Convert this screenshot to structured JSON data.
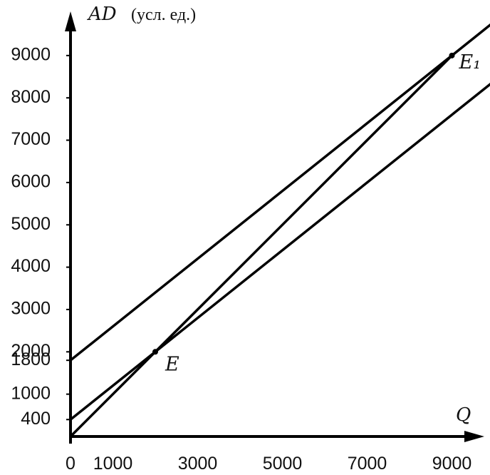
{
  "chart_data": {
    "type": "line",
    "y_axis": {
      "symbol": "AD",
      "unit": "(усл. ед.)",
      "ticks": [
        400,
        1000,
        1800,
        2000,
        3000,
        4000,
        5000,
        6000,
        7000,
        8000,
        9000
      ]
    },
    "x_axis": {
      "symbol": "Q",
      "ticks": [
        0,
        1000,
        3000,
        5000,
        7000,
        9000
      ]
    },
    "xlim": [
      0,
      10000
    ],
    "ylim": [
      0,
      10000
    ],
    "grid": false,
    "legend": "none",
    "series": [
      {
        "id": "ad-upper",
        "x": [
          0,
          10000
        ],
        "y": [
          1800,
          9800
        ]
      },
      {
        "id": "ad-lower",
        "x": [
          0,
          10000
        ],
        "y": [
          400,
          8400
        ]
      },
      {
        "id": "bisector-45",
        "x": [
          0,
          9000
        ],
        "y": [
          0,
          9000
        ]
      }
    ],
    "points": [
      {
        "label": "E",
        "x": 2000,
        "y": 2000
      },
      {
        "label": "E₁",
        "x": 9000,
        "y": 9000
      }
    ]
  }
}
